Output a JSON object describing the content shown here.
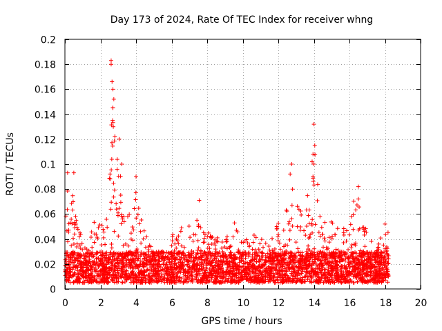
{
  "chart_data": {
    "type": "scatter",
    "title": "Day 173 of 2024, Rate Of TEC Index for receiver whng",
    "xlabel": "GPS time / hours",
    "ylabel": "ROTI / TECUs",
    "xlim": [
      0,
      20
    ],
    "ylim": [
      0,
      0.2
    ],
    "xticks": [
      0,
      2,
      4,
      6,
      8,
      10,
      12,
      14,
      16,
      18,
      20
    ],
    "yticks": [
      0,
      0.02,
      0.04,
      0.06,
      0.08,
      0.1,
      0.12,
      0.14,
      0.16,
      0.18,
      0.2
    ],
    "grid": true,
    "marker": "+",
    "series": [
      {
        "name": "ROTI",
        "color": "#ff0000",
        "time_range_hours": [
          0,
          18.2
        ],
        "baseline_range": [
          0.005,
          0.03
        ],
        "envelope": {
          "x": [
            0,
            0.15,
            0.3,
            0.5,
            0.8,
            1.0,
            1.4,
            1.6,
            1.9,
            2.2,
            2.45,
            2.6,
            2.75,
            2.9,
            3.05,
            3.2,
            3.35,
            3.5,
            3.8,
            4.0,
            4.2,
            4.5,
            5.0,
            5.5,
            6.0,
            6.5,
            7.0,
            7.4,
            7.6,
            8.0,
            8.5,
            9.0,
            9.5,
            10.0,
            10.5,
            11.0,
            11.5,
            12.0,
            12.5,
            12.7,
            12.9,
            13.2,
            13.5,
            13.8,
            14.0,
            14.2,
            14.5,
            14.8,
            15.2,
            15.6,
            16.0,
            16.3,
            16.5,
            16.8,
            17.2,
            17.6,
            18.0,
            18.2
          ],
          "y": [
            0.045,
            0.09,
            0.06,
            0.09,
            0.05,
            0.035,
            0.03,
            0.07,
            0.05,
            0.06,
            0.08,
            0.18,
            0.14,
            0.1,
            0.13,
            0.12,
            0.1,
            0.08,
            0.07,
            0.09,
            0.06,
            0.045,
            0.03,
            0.035,
            0.045,
            0.05,
            0.055,
            0.07,
            0.06,
            0.045,
            0.045,
            0.045,
            0.055,
            0.05,
            0.045,
            0.04,
            0.04,
            0.055,
            0.065,
            0.1,
            0.07,
            0.065,
            0.075,
            0.09,
            0.13,
            0.09,
            0.07,
            0.06,
            0.055,
            0.05,
            0.05,
            0.08,
            0.07,
            0.05,
            0.045,
            0.035,
            0.05,
            0.05
          ]
        },
        "notable_points": [
          {
            "x": 2.6,
            "y": 0.183
          },
          {
            "x": 2.6,
            "y": 0.18
          },
          {
            "x": 2.65,
            "y": 0.166
          },
          {
            "x": 2.7,
            "y": 0.16
          },
          {
            "x": 2.75,
            "y": 0.152
          },
          {
            "x": 2.7,
            "y": 0.145
          },
          {
            "x": 2.68,
            "y": 0.135
          },
          {
            "x": 2.72,
            "y": 0.13
          },
          {
            "x": 3.05,
            "y": 0.12
          },
          {
            "x": 3.2,
            "y": 0.1
          },
          {
            "x": 4.0,
            "y": 0.09
          },
          {
            "x": 0.15,
            "y": 0.093
          },
          {
            "x": 0.5,
            "y": 0.093
          },
          {
            "x": 12.75,
            "y": 0.1
          },
          {
            "x": 12.8,
            "y": 0.08
          },
          {
            "x": 14.0,
            "y": 0.132
          },
          {
            "x": 14.05,
            "y": 0.115
          },
          {
            "x": 13.95,
            "y": 0.108
          },
          {
            "x": 14.0,
            "y": 0.1
          },
          {
            "x": 13.95,
            "y": 0.09
          },
          {
            "x": 16.5,
            "y": 0.082
          },
          {
            "x": 16.5,
            "y": 0.072
          },
          {
            "x": 7.55,
            "y": 0.071
          },
          {
            "x": 18.0,
            "y": 0.052
          }
        ]
      }
    ]
  }
}
